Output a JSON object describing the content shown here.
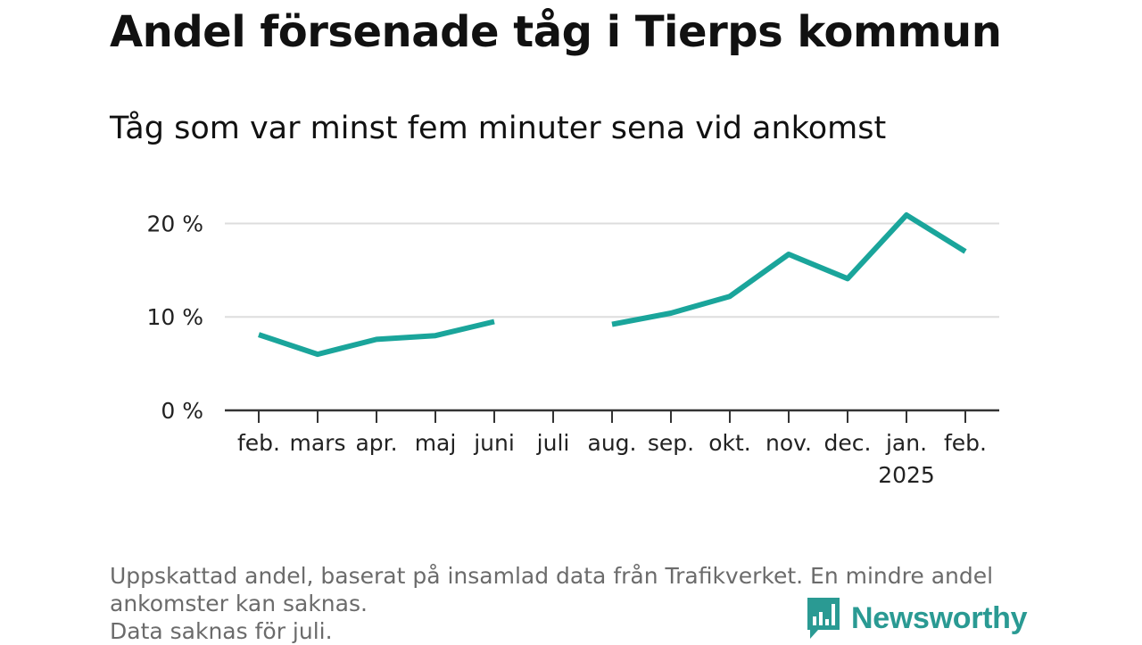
{
  "header": {
    "title": "Andel försenade tåg i Tierps kommun",
    "subtitle": "Tåg som var minst fem minuter sena vid ankomst"
  },
  "chart_data": {
    "type": "line",
    "title": "Andel försenade tåg i Tierps kommun",
    "subtitle": "Tåg som var minst fem minuter sena vid ankomst",
    "categories": [
      "feb.",
      "mars",
      "apr.",
      "maj",
      "juni",
      "juli",
      "aug.",
      "sep.",
      "okt.",
      "nov.",
      "dec.",
      "jan.",
      "feb."
    ],
    "year_label": {
      "under": "jan.",
      "text": "2025"
    },
    "series": [
      {
        "values": [
          8.1,
          6.0,
          7.6,
          8.0,
          9.5,
          null,
          9.2,
          10.4,
          12.2,
          16.7,
          14.1,
          20.9,
          17.0
        ]
      }
    ],
    "y_ticks": [
      0,
      10,
      20
    ],
    "y_tick_labels": [
      "0 %",
      "10 %",
      "20 %"
    ],
    "ylim": [
      0,
      21
    ],
    "y_unit": "%",
    "grid": true,
    "line_color": "#1aa59b",
    "grid_color": "#dddddd",
    "axis_color": "#333333"
  },
  "footnote": {
    "lines": [
      "Uppskattad andel, baserat på insamlad data från Trafikverket. En mindre andel",
      "ankomster kan saknas.",
      "Data saknas för juli."
    ]
  },
  "brand": {
    "name": "Newsworthy",
    "logo_icon": "bar-chart-speech-bubble-icon",
    "color": "#2a9a93"
  }
}
